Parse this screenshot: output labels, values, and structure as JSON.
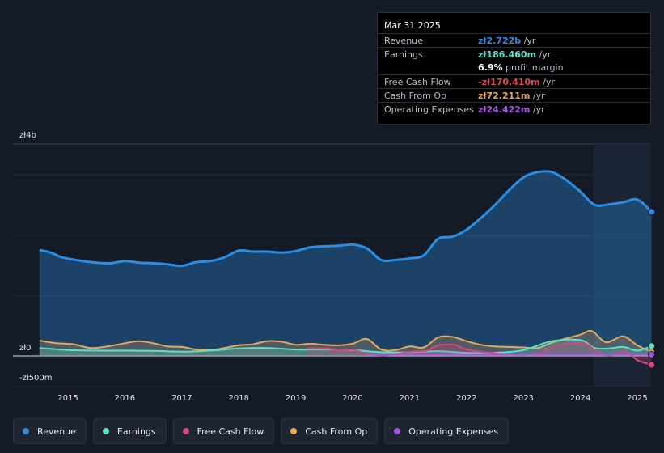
{
  "chart_data": {
    "type": "line",
    "currency": "zł",
    "y_labels": [
      "zł4b",
      "zł0",
      "-zł500m"
    ],
    "ylim": [
      -500,
      4000
    ],
    "x_ticks": [
      "2015",
      "2016",
      "2017",
      "2018",
      "2019",
      "2020",
      "2021",
      "2022",
      "2023",
      "2024",
      "2025"
    ],
    "series": [
      {
        "name": "Revenue",
        "color": "#2b8de3",
        "x": [
          2014.5,
          2014.7,
          2014.9,
          2015.2,
          2015.5,
          2015.75,
          2016.0,
          2016.25,
          2016.5,
          2016.75,
          2017.0,
          2017.25,
          2017.5,
          2017.75,
          2018.0,
          2018.25,
          2018.5,
          2018.75,
          2019.0,
          2019.25,
          2019.5,
          2019.75,
          2020.0,
          2020.25,
          2020.5,
          2020.75,
          2021.0,
          2021.25,
          2021.5,
          2021.75,
          2022.0,
          2022.25,
          2022.5,
          2022.75,
          2023.0,
          2023.25,
          2023.5,
          2023.75,
          2024.0,
          2024.25,
          2024.5,
          2024.75,
          2025.0,
          2025.25
        ],
        "values": [
          2000,
          1950,
          1860,
          1800,
          1760,
          1750,
          1790,
          1760,
          1750,
          1730,
          1700,
          1770,
          1790,
          1860,
          1990,
          1970,
          1970,
          1950,
          1980,
          2050,
          2070,
          2080,
          2100,
          2030,
          1810,
          1810,
          1840,
          1900,
          2210,
          2250,
          2380,
          2600,
          2850,
          3130,
          3370,
          3470,
          3470,
          3320,
          3100,
          2850,
          2860,
          2900,
          2950,
          2722
        ]
      },
      {
        "name": "Earnings",
        "color": "#5ce0cb",
        "x": [
          2014.5,
          2015.0,
          2015.5,
          2016.0,
          2016.5,
          2017.0,
          2017.5,
          2018.0,
          2018.5,
          2019.0,
          2019.5,
          2020.0,
          2020.5,
          2021.0,
          2021.5,
          2022.0,
          2022.5,
          2023.0,
          2023.5,
          2024.0,
          2024.25,
          2024.5,
          2024.75,
          2025.0,
          2025.25
        ],
        "values": [
          150,
          110,
          100,
          100,
          95,
          80,
          100,
          140,
          150,
          120,
          120,
          110,
          70,
          70,
          90,
          60,
          60,
          110,
          280,
          300,
          150,
          140,
          170,
          100,
          186.46
        ]
      },
      {
        "name": "Free Cash Flow",
        "color": "#d6467f",
        "x": [
          2019.2,
          2019.5,
          2019.8,
          2020.0,
          2020.2,
          2020.5,
          2020.8,
          2021.0,
          2021.3,
          2021.5,
          2021.8,
          2022.0,
          2022.5,
          2023.0,
          2023.3,
          2023.6,
          2023.9,
          2024.1,
          2024.3,
          2024.5,
          2024.8,
          2025.0,
          2025.25
        ],
        "values": [
          140,
          140,
          110,
          120,
          60,
          10,
          40,
          80,
          100,
          200,
          210,
          120,
          50,
          20,
          60,
          200,
          240,
          230,
          80,
          10,
          80,
          -80,
          -170.41
        ]
      },
      {
        "name": "Cash From Op",
        "color": "#e8a85a",
        "x": [
          2014.5,
          2014.8,
          2015.1,
          2015.4,
          2015.7,
          2016.0,
          2016.25,
          2016.5,
          2016.75,
          2017.0,
          2017.25,
          2017.5,
          2017.75,
          2018.0,
          2018.25,
          2018.5,
          2018.75,
          2019.0,
          2019.25,
          2019.5,
          2019.75,
          2020.0,
          2020.25,
          2020.5,
          2020.75,
          2021.0,
          2021.25,
          2021.5,
          2021.75,
          2022.0,
          2022.25,
          2022.5,
          2022.75,
          2023.0,
          2023.25,
          2023.5,
          2023.75,
          2024.0,
          2024.2,
          2024.45,
          2024.75,
          2025.0,
          2025.25
        ],
        "values": [
          290,
          240,
          220,
          150,
          180,
          240,
          280,
          240,
          180,
          170,
          120,
          110,
          150,
          200,
          220,
          280,
          270,
          210,
          230,
          210,
          200,
          230,
          320,
          120,
          110,
          180,
          160,
          350,
          360,
          280,
          210,
          180,
          170,
          160,
          150,
          250,
          330,
          400,
          470,
          260,
          370,
          200,
          72.211
        ]
      },
      {
        "name": "Operating Expenses",
        "color": "#a552e6",
        "x": [
          2020.25,
          2020.5,
          2021.0,
          2021.5,
          2022.0,
          2022.5,
          2023.0,
          2023.5,
          2024.0,
          2024.5,
          2025.0,
          2025.25
        ],
        "values": [
          24,
          24,
          24,
          24,
          24,
          24,
          24,
          24,
          24,
          24,
          24,
          24.422
        ]
      }
    ]
  },
  "tooltip": {
    "date": "Mar 31 2025",
    "rows": [
      {
        "label": "Revenue",
        "value": "zł2.722b",
        "unit": " /yr",
        "color": "#2b8de3"
      },
      {
        "label": "Earnings",
        "value": "zł186.460m",
        "unit": " /yr",
        "color": "#5ce0cb"
      },
      {
        "label": "",
        "value": "6.9%",
        "unit": " profit margin",
        "color": "#ffffff"
      },
      {
        "label": "Free Cash Flow",
        "value": "-zł170.410m",
        "unit": " /yr",
        "color": "#e0444e"
      },
      {
        "label": "Cash From Op",
        "value": "zł72.211m",
        "unit": " /yr",
        "color": "#e8a85a"
      },
      {
        "label": "Operating Expenses",
        "value": "zł24.422m",
        "unit": " /yr",
        "color": "#a552e6"
      }
    ]
  },
  "legend": [
    {
      "label": "Revenue",
      "color": "#2b8de3"
    },
    {
      "label": "Earnings",
      "color": "#5ce0cb"
    },
    {
      "label": "Free Cash Flow",
      "color": "#d6467f"
    },
    {
      "label": "Cash From Op",
      "color": "#e8a85a"
    },
    {
      "label": "Operating Expenses",
      "color": "#a552e6"
    }
  ]
}
